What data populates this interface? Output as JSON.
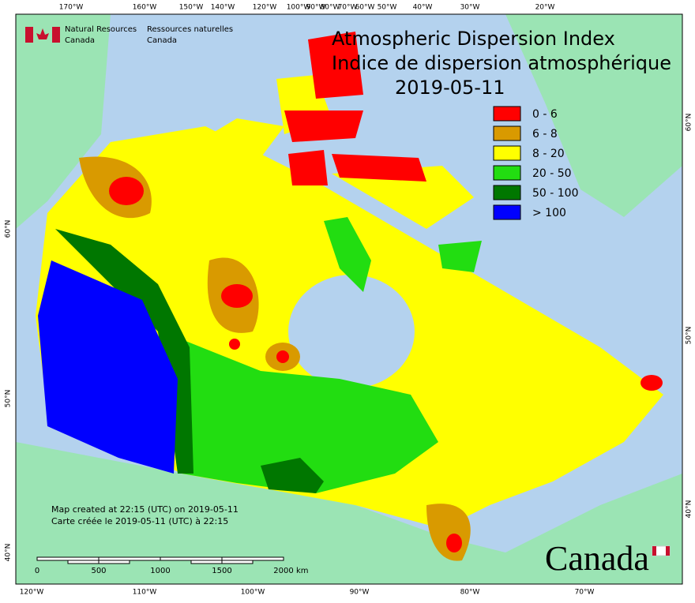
{
  "header": {
    "agency_en": [
      "Natural Resources",
      "Canada"
    ],
    "agency_fr": [
      "Ressources naturelles",
      "Canada"
    ]
  },
  "title": {
    "lines": [
      "Atmospheric Dispersion Index",
      "Indice de dispersion atmosphérique",
      "2019-05-11"
    ]
  },
  "legend": [
    {
      "label": "0 - 6",
      "color": "#ff0000"
    },
    {
      "label": "6 - 8",
      "color": "#d99a00"
    },
    {
      "label": "8 - 20",
      "color": "#ffff00"
    },
    {
      "label": "20 - 50",
      "color": "#22dd11"
    },
    {
      "label": "50 - 100",
      "color": "#007700"
    },
    {
      "label": "> 100",
      "color": "#0000ff"
    }
  ],
  "graticule": {
    "top": [
      "170°W",
      "160°W",
      "150°W",
      "140°W",
      "120°W",
      "100°W",
      "90°W",
      "80°W",
      "70°W",
      "60°W",
      "50°W",
      "40°W",
      "30°W",
      "20°W"
    ],
    "bottom": [
      "120°W",
      "110°W",
      "100°W",
      "90°W",
      "80°W",
      "70°W"
    ],
    "left": [
      "60°N",
      "50°N",
      "40°N"
    ],
    "right": [
      "60°N",
      "50°N",
      "40°N"
    ]
  },
  "credits": [
    "Map created at 22:15 (UTC) on 2019-05-11",
    "Carte créée le 2019-05-11 (UTC) à 22:15"
  ],
  "scale_bar": {
    "labels": [
      "0",
      "500",
      "1000",
      "1500",
      "2000"
    ],
    "unit": "km"
  },
  "wordmark": "Canada"
}
